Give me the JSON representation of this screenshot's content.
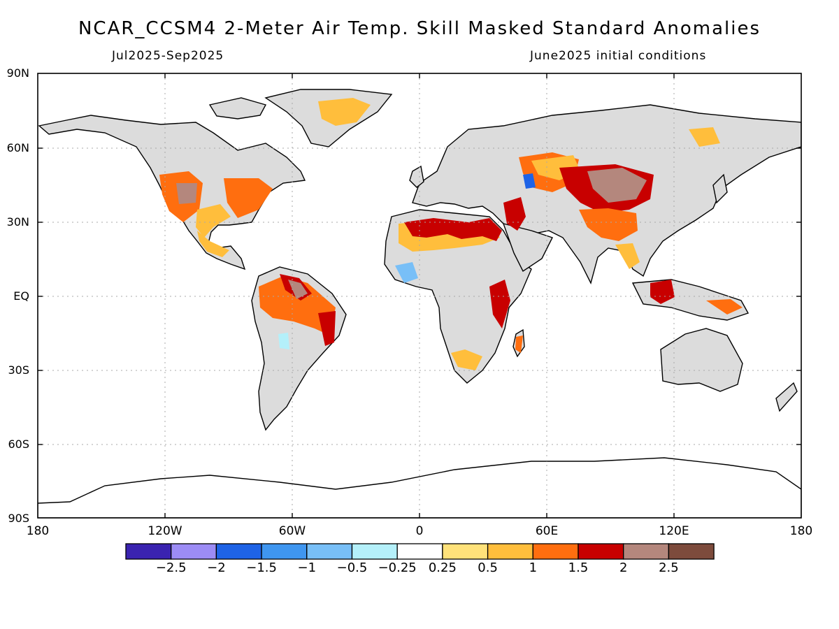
{
  "title": "NCAR_CCSM4 2-Meter Air Temp. Skill Masked Standard Anomalies",
  "subtitle_left": "Jul2025-Sep2025",
  "subtitle_right": "June2025 initial conditions",
  "lat_labels": [
    "90N",
    "60N",
    "30N",
    "EQ",
    "30S",
    "60S",
    "90S"
  ],
  "lon_labels": [
    "180",
    "120W",
    "60W",
    "0",
    "60E",
    "120E",
    "180"
  ],
  "colorbar": {
    "colors": [
      "#3a23b0",
      "#9c8cf5",
      "#1e63e6",
      "#3f96f0",
      "#78bff7",
      "#b4f0fa",
      "#ffffff",
      "#ffe27a",
      "#ffbe3c",
      "#ff6e0f",
      "#c80000",
      "#b4877d",
      "#7d4b3c"
    ],
    "labels": [
      "-2.5",
      "-2",
      "-1.5",
      "-1",
      "-0.5",
      "-0.25",
      "0.25",
      "0.5",
      "1",
      "1.5",
      "2",
      "2.5"
    ]
  },
  "land_fill_color": "#dcdcdc"
}
